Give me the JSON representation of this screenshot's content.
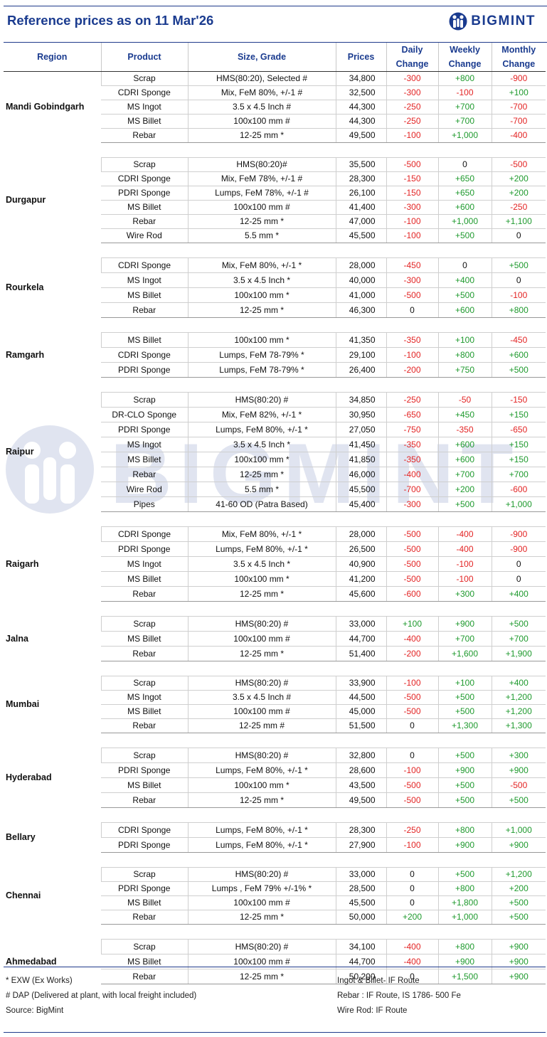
{
  "title": "Reference prices as on 11 Mar'26",
  "logo_text": "BIGMINT",
  "watermark_text": "BIGMINT",
  "colors": {
    "accent": "#1a3b8f",
    "negative": "#e32424",
    "positive": "#1f9a2e"
  },
  "columns": [
    "Region",
    "Product",
    "Size, Grade",
    "Prices",
    "Daily Change",
    "Weekly Change",
    "Monthly Change"
  ],
  "groups": [
    {
      "region": "Mandi Gobindgarh",
      "rows": [
        [
          "Scrap",
          "HMS(80:20), Selected #",
          "34,800",
          "-300",
          "+800",
          "-900"
        ],
        [
          "CDRI Sponge",
          "Mix, FeM 80%, +/-1 #",
          "32,500",
          "-300",
          "-100",
          "+100"
        ],
        [
          "MS Ingot",
          "3.5 x 4.5 Inch #",
          "44,300",
          "-250",
          "+700",
          "-700"
        ],
        [
          "MS Billet",
          "100x100 mm #",
          "44,300",
          "-250",
          "+700",
          "-700"
        ],
        [
          "Rebar",
          "12-25 mm *",
          "49,500",
          "-100",
          "+1,000",
          "-400"
        ]
      ]
    },
    {
      "region": "Durgapur",
      "rows": [
        [
          "Scrap",
          "HMS(80:20)#",
          "35,500",
          "-500",
          "0",
          "-500"
        ],
        [
          "CDRI Sponge",
          "Mix, FeM 78%, +/-1 #",
          "28,300",
          "-150",
          "+650",
          "+200"
        ],
        [
          "PDRI Sponge",
          "Lumps, FeM 78%, +/-1 #",
          "26,100",
          "-150",
          "+650",
          "+200"
        ],
        [
          "MS Billet",
          "100x100 mm #",
          "41,400",
          "-300",
          "+600",
          "-250"
        ],
        [
          "Rebar",
          "12-25 mm *",
          "47,000",
          "-100",
          "+1,000",
          "+1,100"
        ],
        [
          "Wire Rod",
          "5.5 mm *",
          "45,500",
          "-100",
          "+500",
          "0"
        ]
      ]
    },
    {
      "region": "Rourkela",
      "tall": true,
      "rows": [
        [
          "CDRI Sponge",
          "Mix, FeM 80%, +/-1 *",
          "28,000",
          "-450",
          "0",
          "+500"
        ],
        [
          "MS Ingot",
          "3.5 x 4.5 Inch *",
          "40,000",
          "-300",
          "+400",
          "0"
        ],
        [
          "MS Billet",
          "100x100 mm *",
          "41,000",
          "-500",
          "+500",
          "-100"
        ],
        [
          "Rebar",
          "12-25 mm *",
          "46,300",
          "0",
          "+600",
          "+800"
        ]
      ]
    },
    {
      "region": "Ramgarh",
      "tall": true,
      "rows": [
        [
          "MS Billet",
          "100x100 mm *",
          "41,350",
          "-350",
          "+100",
          "-450"
        ],
        [
          "CDRI Sponge",
          "Lumps, FeM 78-79% *",
          "29,100",
          "-100",
          "+800",
          "+600"
        ],
        [
          "PDRI Sponge",
          "Lumps, FeM 78-79% *",
          "26,400",
          "-200",
          "+750",
          "+500"
        ]
      ]
    },
    {
      "region": "Raipur",
      "tall": true,
      "rows": [
        [
          "Scrap",
          "HMS(80:20) #",
          "34,850",
          "-250",
          "-50",
          "-150"
        ],
        [
          "DR-CLO Sponge",
          "Mix, FeM 82%, +/-1 *",
          "30,950",
          "-650",
          "+450",
          "+150"
        ],
        [
          "PDRI Sponge",
          "Lumps, FeM 80%, +/-1 *",
          "27,050",
          "-750",
          "-350",
          "-650"
        ],
        [
          "MS Ingot",
          "3.5 x 4.5 Inch *",
          "41,450",
          "-350",
          "+600",
          "+150"
        ],
        [
          "MS Billet",
          "100x100 mm *",
          "41,850",
          "-350",
          "+600",
          "+150"
        ],
        [
          "Rebar",
          "12-25 mm *",
          "46,000",
          "-400",
          "+700",
          "+700"
        ],
        [
          "Wire Rod",
          "5.5 mm *",
          "45,500",
          "-700",
          "+200",
          "-600"
        ],
        [
          "Pipes",
          "41-60 OD (Patra Based)",
          "45,400",
          "-300",
          "+500",
          "+1,000"
        ]
      ]
    },
    {
      "region": "Raigarh",
      "tall": true,
      "rows": [
        [
          "CDRI Sponge",
          "Mix, FeM 80%, +/-1 *",
          "28,000",
          "-500",
          "-400",
          "-900"
        ],
        [
          "PDRI Sponge",
          "Lumps, FeM 80%, +/-1 *",
          "26,500",
          "-500",
          "-400",
          "-900"
        ],
        [
          "MS Ingot",
          "3.5 x 4.5 Inch *",
          "40,900",
          "-500",
          "-100",
          "0"
        ],
        [
          "MS Billet",
          "100x100 mm *",
          "41,200",
          "-500",
          "-100",
          "0"
        ],
        [
          "Rebar",
          "12-25 mm *",
          "45,600",
          "-600",
          "+300",
          "+400"
        ]
      ]
    },
    {
      "region": "Jalna",
      "tall": true,
      "rows": [
        [
          "Scrap",
          "HMS(80:20) #",
          "33,000",
          "+100",
          "+900",
          "+500"
        ],
        [
          "MS Billet",
          "100x100 mm #",
          "44,700",
          "-400",
          "+700",
          "+700"
        ],
        [
          "Rebar",
          "12-25 mm *",
          "51,400",
          "-200",
          "+1,600",
          "+1,900"
        ]
      ]
    },
    {
      "region": "Mumbai",
      "rows": [
        [
          "Scrap",
          "HMS(80:20) #",
          "33,900",
          "-100",
          "+100",
          "+400"
        ],
        [
          "MS Ingot",
          "3.5 x 4.5 Inch #",
          "44,500",
          "-500",
          "+500",
          "+1,200"
        ],
        [
          "MS Billet",
          "100x100 mm #",
          "45,000",
          "-500",
          "+500",
          "+1,200"
        ],
        [
          "Rebar",
          "12-25 mm #",
          "51,500",
          "0",
          "+1,300",
          "+1,300"
        ]
      ]
    },
    {
      "region": "Hyderabad",
      "tall": true,
      "rows": [
        [
          "Scrap",
          "HMS(80:20) #",
          "32,800",
          "0",
          "+500",
          "+300"
        ],
        [
          "PDRI Sponge",
          "Lumps, FeM 80%, +/-1 *",
          "28,600",
          "-100",
          "+900",
          "+900"
        ],
        [
          "MS Billet",
          "100x100 mm *",
          "43,500",
          "-500",
          "+500",
          "-500"
        ],
        [
          "Rebar",
          "12-25 mm *",
          "49,500",
          "-500",
          "+500",
          "+500"
        ]
      ]
    },
    {
      "region": "Bellary",
      "tall": true,
      "rows": [
        [
          "CDRI Sponge",
          "Lumps, FeM 80%, +/-1 *",
          "28,300",
          "-250",
          "+800",
          "+1,000"
        ],
        [
          "PDRI Sponge",
          "Lumps, FeM 80%, +/-1 *",
          "27,900",
          "-100",
          "+900",
          "+900"
        ]
      ]
    },
    {
      "region": "Chennai",
      "rows": [
        [
          "Scrap",
          "HMS(80:20) #",
          "33,000",
          "0",
          "+500",
          "+1,200"
        ],
        [
          "PDRI Sponge",
          "Lumps , FeM 79% +/-1% *",
          "28,500",
          "0",
          "+800",
          "+200"
        ],
        [
          "MS Billet",
          "100x100 mm  #",
          "45,500",
          "0",
          "+1,800",
          "+500"
        ],
        [
          "Rebar",
          "12-25 mm *",
          "50,000",
          "+200",
          "+1,000",
          "+500"
        ]
      ]
    },
    {
      "region": "Ahmedabad",
      "tall": true,
      "rows": [
        [
          "Scrap",
          "HMS(80:20) #",
          "34,100",
          "-400",
          "+800",
          "+900"
        ],
        [
          "MS Billet",
          "100x100 mm  #",
          "44,700",
          "-400",
          "+900",
          "+900"
        ],
        [
          "Rebar",
          "12-25 mm *",
          "50,200",
          "0",
          "+1,500",
          "+900"
        ]
      ]
    }
  ],
  "footnotes_left": [
    "* EXW (Ex Works)",
    "# DAP (Delivered at plant, with local freight included)",
    "Source: BigMint"
  ],
  "footnotes_right": [
    "Ingot & Billet- IF Route",
    "Rebar : IF Route, IS 1786- 500 Fe",
    "Wire Rod: IF Route"
  ]
}
